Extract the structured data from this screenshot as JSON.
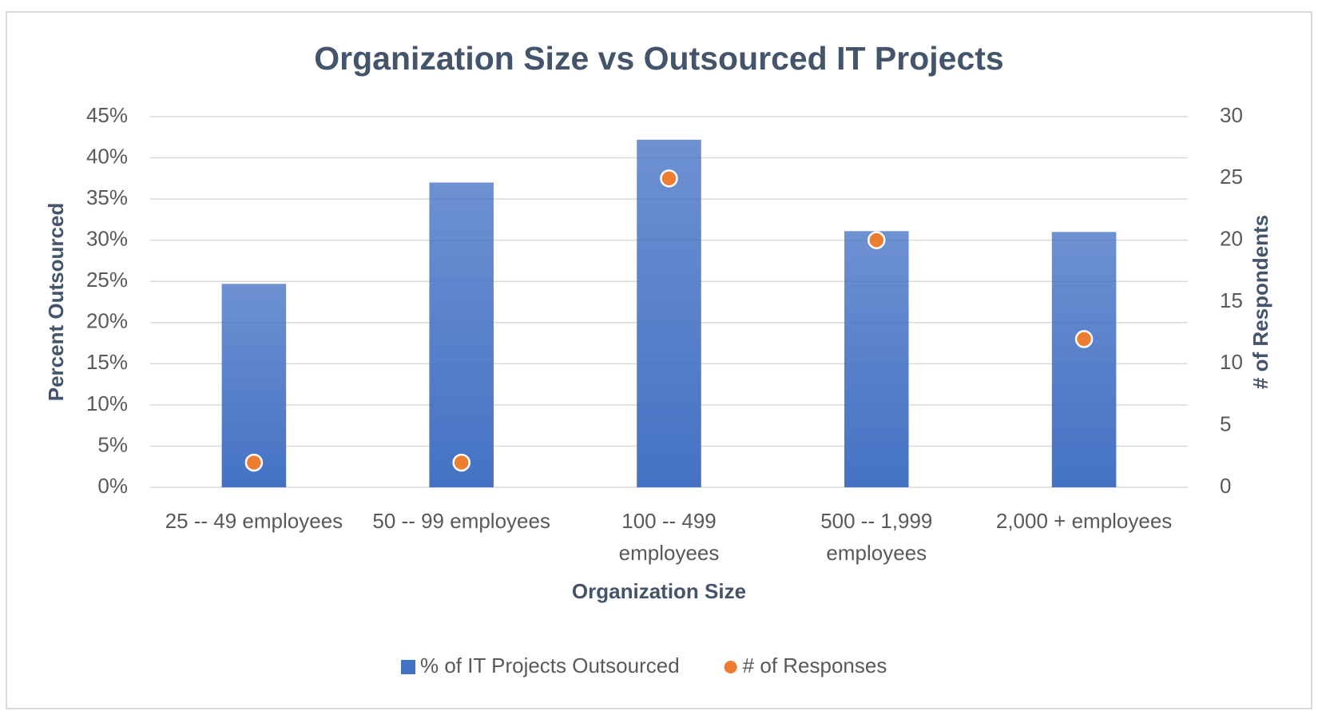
{
  "chart_data": {
    "type": "bar",
    "title": "Organization Size vs Outsourced IT Projects",
    "x_label": "Organization Size",
    "y_label": "Percent Outsourced",
    "y2_label": "# of Respondents",
    "categories": [
      "25 -- 49 employees",
      "50 -- 99 employees",
      "100 -- 499 employees",
      "500 -- 1,999 employees",
      "2,000 + employees"
    ],
    "series": [
      {
        "name": "% of IT Projects Outsourced",
        "type": "bar",
        "color": "#4472c4",
        "values": [
          24.7,
          37,
          42.2,
          31.1,
          31
        ]
      },
      {
        "name": "# of Responses",
        "type": "scatter",
        "axis": "y2",
        "color": "#ed7d31",
        "values": [
          2,
          2,
          25,
          20,
          12
        ]
      }
    ],
    "ylim": [
      0,
      45
    ],
    "yticks": [
      {
        "value": 0,
        "label": "0%"
      },
      {
        "value": 5,
        "label": "5%"
      },
      {
        "value": 10,
        "label": "10%"
      },
      {
        "value": 15,
        "label": "15%"
      },
      {
        "value": 20,
        "label": "20%"
      },
      {
        "value": 25,
        "label": "25%"
      },
      {
        "value": 30,
        "label": "30%"
      },
      {
        "value": 35,
        "label": "35%"
      },
      {
        "value": 40,
        "label": "40%"
      },
      {
        "value": 45,
        "label": "45%"
      }
    ],
    "y2lim": [
      0,
      30
    ],
    "y2ticks": [
      0,
      5,
      10,
      15,
      20,
      25,
      30
    ],
    "grid": true,
    "legend": "bottom"
  }
}
